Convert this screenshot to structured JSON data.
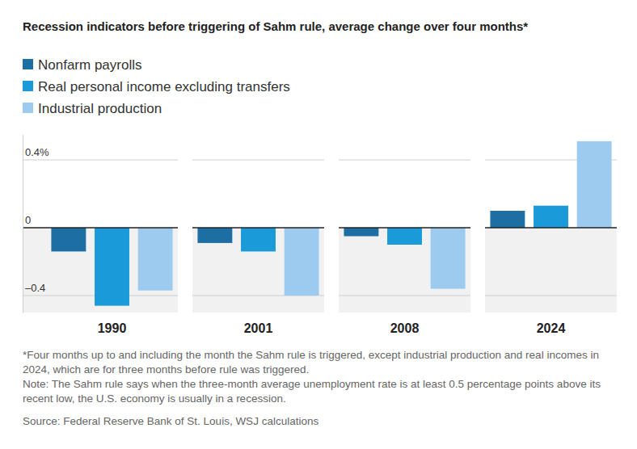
{
  "chart_data": {
    "type": "bar",
    "title": "Recession indicators before triggering of Sahm rule, average change over four months*",
    "categories": [
      "1990",
      "2001",
      "2008",
      "2024"
    ],
    "series": [
      {
        "name": "Nonfarm payrolls",
        "color": "#1d6fa3",
        "values": [
          -0.14,
          -0.09,
          -0.05,
          0.1
        ]
      },
      {
        "name": "Real personal income excluding transfers",
        "color": "#1a9ad8",
        "values": [
          -0.46,
          -0.14,
          -0.1,
          0.13
        ]
      },
      {
        "name": "Industrial production",
        "color": "#9dcbef",
        "values": [
          -0.37,
          -0.4,
          -0.36,
          0.51
        ]
      }
    ],
    "ylim": [
      -0.5,
      0.55
    ],
    "yticks": [
      {
        "value": 0.4,
        "label": "0.4%"
      },
      0,
      {
        "value": -0.4,
        "label": "–0.4"
      }
    ],
    "grid": true,
    "legend": "top-left",
    "footnote": "*Four months up to and including the month the Sahm rule is triggered, except industrial production and real incomes in 2024, which are for three months before rule was triggered.",
    "note": "Note: The Sahm rule says when the three-month average unemployment rate is at least 0.5 percentage points above its recent low, the U.S. economy is usually in a recession.",
    "source": "Source: Federal Reserve Bank of St. Louis, WSJ calculations"
  }
}
